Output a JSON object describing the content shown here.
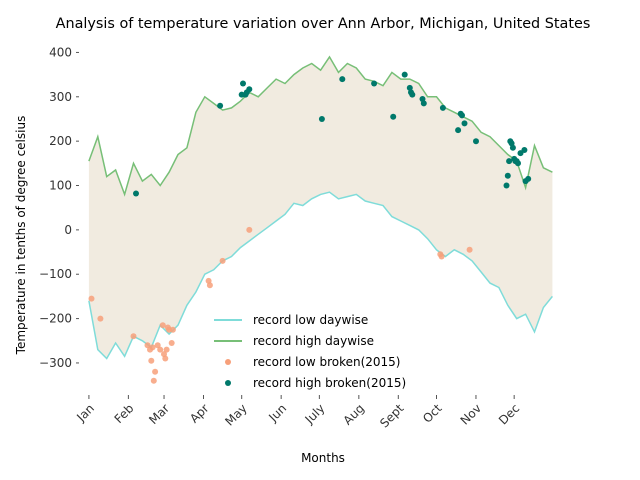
{
  "chart_data": {
    "type": "line",
    "title": "Analysis of temperature variation over Ann Arbor, Michigan, United States",
    "xlabel": "Months",
    "ylabel": "Temperature in tenths of degree celsius",
    "x_unit": "day of year",
    "xlim": [
      -6,
      371
    ],
    "ylim": [
      -370,
      410
    ],
    "yticks": [
      -300,
      -200,
      -100,
      0,
      100,
      200,
      300,
      400
    ],
    "month_ticks": [
      {
        "label": "Jan",
        "day": 1
      },
      {
        "label": "Feb",
        "day": 32
      },
      {
        "label": "Mar",
        "day": 60
      },
      {
        "label": "Apr",
        "day": 91
      },
      {
        "label": "May",
        "day": 121
      },
      {
        "label": "Jun",
        "day": 152
      },
      {
        "label": "July",
        "day": 182
      },
      {
        "label": "Aug",
        "day": 213
      },
      {
        "label": "Sept",
        "day": 244
      },
      {
        "label": "Oct",
        "day": 274
      },
      {
        "label": "Nov",
        "day": 305
      },
      {
        "label": "Dec",
        "day": 335
      }
    ],
    "legend": {
      "placement": "lower center",
      "entries": [
        {
          "label": "record low daywise",
          "kind": "line",
          "color": "#7fdcd9"
        },
        {
          "label": "record high daywise",
          "kind": "line",
          "color": "#77bf77"
        },
        {
          "label": "record low broken(2015)",
          "kind": "point",
          "color": "#f7a07a"
        },
        {
          "label": "record high broken(2015)",
          "kind": "point",
          "color": "#00796b"
        }
      ]
    },
    "fill_color": "#f1ebe0",
    "series": [
      {
        "name": "record low daywise",
        "color": "#7fdcd9",
        "x": [
          1,
          8,
          15,
          22,
          29,
          36,
          43,
          50,
          57,
          64,
          71,
          78,
          85,
          92,
          99,
          106,
          113,
          120,
          127,
          134,
          141,
          148,
          155,
          162,
          169,
          176,
          183,
          190,
          197,
          204,
          211,
          218,
          225,
          232,
          239,
          246,
          253,
          260,
          267,
          274,
          281,
          288,
          295,
          302,
          309,
          316,
          323,
          330,
          337,
          344,
          351,
          358,
          365
        ],
        "y": [
          -160,
          -270,
          -290,
          -255,
          -285,
          -240,
          -250,
          -265,
          -215,
          -235,
          -215,
          -170,
          -140,
          -100,
          -90,
          -70,
          -60,
          -40,
          -25,
          -10,
          5,
          20,
          35,
          60,
          55,
          70,
          80,
          85,
          70,
          75,
          80,
          65,
          60,
          55,
          30,
          20,
          10,
          0,
          -20,
          -45,
          -60,
          -45,
          -55,
          -70,
          -95,
          -120,
          -130,
          -170,
          -200,
          -190,
          -230,
          -175,
          -150
        ]
      },
      {
        "name": "record high daywise",
        "color": "#77bf77",
        "x": [
          1,
          8,
          15,
          22,
          29,
          36,
          43,
          50,
          57,
          64,
          71,
          78,
          85,
          92,
          99,
          106,
          113,
          120,
          127,
          134,
          141,
          148,
          155,
          162,
          169,
          176,
          183,
          190,
          197,
          204,
          211,
          218,
          225,
          232,
          239,
          246,
          253,
          260,
          267,
          274,
          281,
          288,
          295,
          302,
          309,
          316,
          323,
          330,
          337,
          344,
          351,
          358,
          365
        ],
        "y": [
          155,
          210,
          120,
          135,
          80,
          150,
          110,
          125,
          100,
          130,
          170,
          185,
          265,
          300,
          285,
          270,
          275,
          290,
          310,
          300,
          320,
          340,
          330,
          350,
          365,
          375,
          360,
          390,
          355,
          375,
          365,
          340,
          335,
          325,
          355,
          340,
          340,
          330,
          300,
          300,
          275,
          265,
          255,
          245,
          220,
          210,
          190,
          170,
          155,
          95,
          190,
          140,
          130
        ]
      },
      {
        "name": "record low broken(2015)",
        "kind": "point",
        "color": "#f7a07a",
        "x": [
          3,
          10,
          36,
          47,
          49,
          50,
          51,
          52,
          53,
          55,
          57,
          59,
          60,
          61,
          62,
          63,
          64,
          66,
          67,
          95,
          96,
          106,
          127,
          277,
          278,
          300
        ],
        "y": [
          -155,
          -200,
          -240,
          -260,
          -270,
          -295,
          -265,
          -340,
          -320,
          -260,
          -270,
          -215,
          -280,
          -290,
          -270,
          -220,
          -225,
          -255,
          -225,
          -115,
          -125,
          -70,
          0,
          -55,
          -60,
          -45
        ]
      },
      {
        "name": "record high broken(2015)",
        "kind": "point",
        "color": "#00796b",
        "x": [
          38,
          104,
          121,
          122,
          124,
          125,
          127,
          184,
          200,
          225,
          240,
          249,
          253,
          254,
          255,
          263,
          264,
          279,
          291,
          293,
          294,
          296,
          305,
          329,
          330,
          331,
          332,
          333,
          334,
          335,
          336,
          337,
          338,
          340,
          343,
          344,
          346
        ],
        "y": [
          82,
          280,
          305,
          330,
          305,
          310,
          317,
          250,
          340,
          330,
          255,
          350,
          320,
          310,
          305,
          295,
          285,
          275,
          225,
          262,
          258,
          240,
          200,
          100,
          122,
          155,
          200,
          195,
          185,
          160,
          155,
          155,
          150,
          173,
          180,
          110,
          115
        ]
      }
    ]
  }
}
